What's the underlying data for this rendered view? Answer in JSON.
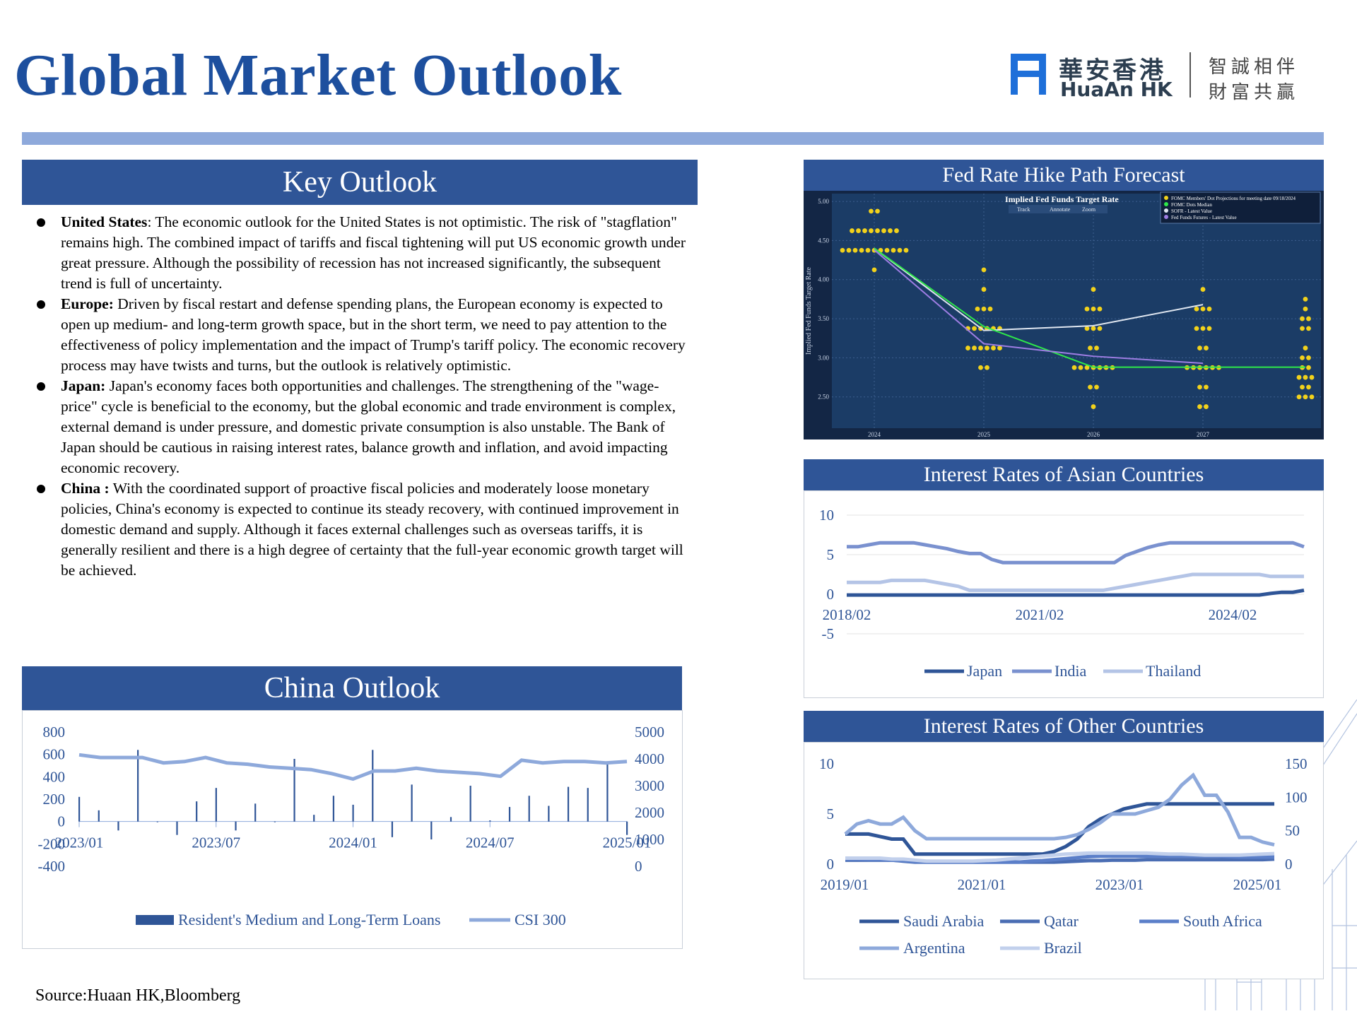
{
  "header": {
    "title": "Global Market Outlook",
    "logo_cn": "華安香港",
    "logo_en": "HuaAn HK",
    "slogan_line1": "智誠相伴",
    "slogan_line2": "財富共贏"
  },
  "colors": {
    "title": "#1d4f9e",
    "panel_header": "#2f5597",
    "rule": "#8ea9db"
  },
  "key_outlook": {
    "heading": "Key Outlook",
    "items": [
      {
        "label": "United States",
        "sep": ":",
        "text": " The economic outlook for the United States is not optimistic. The risk of \"stagflation\" remains high. The combined impact of tariffs and fiscal tightening will put US economic growth under great pressure. Although the possibility of recession has not increased significantly, the subsequent trend is full of uncertainty."
      },
      {
        "label": "Europe:",
        "sep": "",
        "text": " Driven by fiscal restart and defense spending plans, the European economy is expected to open up medium- and long-term growth space, but in the short term, we need to pay attention to the effectiveness of policy implementation and the impact of Trump's tariff policy. The economic recovery process may have twists and turns, but the outlook is relatively optimistic."
      },
      {
        "label": "Japan:",
        "sep": "",
        "text": " Japan's economy faces both opportunities and challenges. The strengthening of the \"wage-price\" cycle is beneficial to the economy, but the global economic and trade environment is complex, external demand is under pressure, and domestic private consumption is also unstable. The Bank of Japan should be cautious in raising interest rates, balance growth and inflation, and avoid impacting economic recovery."
      },
      {
        "label": "China :",
        "sep": "",
        "text": " With the coordinated support of proactive fiscal policies and moderately loose monetary policies, China's economy is expected to continue its steady recovery, with continued improvement in domestic demand and supply. Although it faces external challenges such as overseas tariffs, it is generally resilient and there is a high degree of certainty that the full-year economic growth target will be achieved."
      }
    ]
  },
  "china_outlook": {
    "heading": "China Outlook"
  },
  "fed": {
    "heading": "Fed Rate Hike Path Forecast"
  },
  "asia": {
    "heading": "Interest Rates of Asian Countries"
  },
  "other": {
    "heading": "Interest Rates of Other Countries"
  },
  "source": "Source:Huaan HK,Bloomberg",
  "chart_data": [
    {
      "id": "china",
      "type": "bar+line",
      "x_ticks": [
        "2023/01",
        "2023/07",
        "2024/01",
        "2024/07",
        "2025/01"
      ],
      "yleft_ticks": [
        "800",
        "600",
        "400",
        "200",
        "0",
        "-200",
        "-400"
      ],
      "yleft": [
        -400,
        800
      ],
      "yright_ticks": [
        "5000",
        "4000",
        "3000",
        "2000",
        "1000",
        "0"
      ],
      "yright": [
        0,
        5000
      ],
      "legend": [
        "Resident's Medium and Long-Term Loans",
        "CSI 300"
      ],
      "bars": [
        220,
        100,
        -80,
        640,
        0,
        -120,
        180,
        300,
        -80,
        160,
        0,
        560,
        60,
        230,
        150,
        640,
        -140,
        330,
        -160,
        40,
        320,
        10,
        130,
        230,
        140,
        310,
        300,
        510,
        -120
      ],
      "line": [
        4150,
        4050,
        4050,
        4050,
        3850,
        3900,
        4050,
        3850,
        3800,
        3700,
        3650,
        3600,
        3450,
        3250,
        3550,
        3550,
        3650,
        3550,
        3500,
        3450,
        3350,
        3950,
        3850,
        3900,
        3900,
        3850,
        3900
      ]
    },
    {
      "id": "fed",
      "type": "scatter+line",
      "title": "Implied Fed Funds Target Rate",
      "ylabel": "Implied Fed Funds Target Rate",
      "toolbar": [
        "Track",
        "Annotate",
        "Zoom"
      ],
      "legend": [
        "FOMC Members' Dot Projections for meeting date 09/18/2024",
        "FOMC Dots Median",
        "SOFR - Latest Value",
        "Fed Funds Futures - Latest Value"
      ],
      "x_ticks": [
        "2024",
        "2025",
        "2026",
        "2027"
      ],
      "y_ticks": [
        "5.00",
        "4.50",
        "4.00",
        "3.50",
        "3.00",
        "2.50"
      ],
      "ylim": [
        2.1,
        5.1
      ],
      "dots": [
        {
          "x": 0,
          "vals": [
            [
              4.875,
              2
            ],
            [
              4.625,
              8
            ],
            [
              4.375,
              11
            ],
            [
              4.125,
              1
            ]
          ]
        },
        {
          "x": 1,
          "vals": [
            [
              4.125,
              1
            ],
            [
              3.875,
              1
            ],
            [
              3.625,
              3
            ],
            [
              3.375,
              6
            ],
            [
              3.125,
              6
            ],
            [
              2.875,
              2
            ]
          ]
        },
        {
          "x": 2,
          "vals": [
            [
              3.875,
              1
            ],
            [
              3.625,
              3
            ],
            [
              3.375,
              3
            ],
            [
              3.125,
              2
            ],
            [
              2.875,
              7
            ],
            [
              2.625,
              2
            ],
            [
              2.375,
              1
            ]
          ]
        },
        {
          "x": 3,
          "vals": [
            [
              3.875,
              1
            ],
            [
              3.625,
              3
            ],
            [
              3.375,
              3
            ],
            [
              3.125,
              2
            ],
            [
              2.875,
              6
            ],
            [
              2.625,
              2
            ],
            [
              2.375,
              2
            ]
          ]
        },
        {
          "x": 4,
          "vals": [
            [
              3.75,
              1
            ],
            [
              3.625,
              1
            ],
            [
              3.5,
              2
            ],
            [
              3.375,
              2
            ],
            [
              3.125,
              1
            ],
            [
              3.0,
              2
            ],
            [
              2.875,
              2
            ],
            [
              2.75,
              3
            ],
            [
              2.625,
              2
            ],
            [
              2.5,
              3
            ]
          ]
        }
      ],
      "lines": [
        {
          "name": "white",
          "color": "#dfe6f0",
          "points": [
            [
              0,
              4.4
            ],
            [
              1,
              3.35
            ],
            [
              2,
              3.41
            ],
            [
              3,
              3.68
            ]
          ]
        },
        {
          "name": "green",
          "color": "#2ee84a",
          "points": [
            [
              0,
              4.4
            ],
            [
              1,
              3.4
            ],
            [
              2,
              2.88
            ],
            [
              3,
              2.88
            ],
            [
              4,
              2.88
            ]
          ]
        },
        {
          "name": "purple",
          "color": "#9e7de3",
          "points": [
            [
              0,
              4.38
            ],
            [
              1,
              3.18
            ],
            [
              2,
              3.02
            ],
            [
              3,
              2.93
            ]
          ]
        }
      ]
    },
    {
      "id": "asia",
      "type": "line",
      "x_ticks": [
        "2018/02",
        "2021/02",
        "2024/02"
      ],
      "y_ticks": [
        "10",
        "5",
        "0",
        "-5"
      ],
      "ylim": [
        -5,
        10
      ],
      "series": [
        {
          "name": "Japan",
          "color": "#2f5597",
          "values": [
            -0.1,
            -0.1,
            -0.1,
            -0.1,
            -0.1,
            -0.1,
            -0.1,
            -0.1,
            -0.1,
            -0.1,
            -0.1,
            -0.1,
            -0.1,
            -0.1,
            -0.1,
            -0.1,
            -0.1,
            -0.1,
            -0.1,
            -0.1,
            -0.1,
            -0.1,
            -0.1,
            -0.1,
            -0.1,
            -0.1,
            -0.1,
            -0.1,
            -0.1,
            -0.1,
            -0.1,
            -0.1,
            -0.1,
            -0.1,
            -0.1,
            -0.1,
            -0.1,
            -0.1,
            0.1,
            0.25,
            0.25,
            0.5
          ]
        },
        {
          "name": "India",
          "color": "#7a91cf",
          "values": [
            6.0,
            6.0,
            6.25,
            6.5,
            6.5,
            6.5,
            6.5,
            6.25,
            6.0,
            5.75,
            5.4,
            5.15,
            5.15,
            4.4,
            4.0,
            4.0,
            4.0,
            4.0,
            4.0,
            4.0,
            4.0,
            4.0,
            4.0,
            4.0,
            4.0,
            4.9,
            5.4,
            5.9,
            6.25,
            6.5,
            6.5,
            6.5,
            6.5,
            6.5,
            6.5,
            6.5,
            6.5,
            6.5,
            6.5,
            6.5,
            6.5,
            6.0
          ]
        },
        {
          "name": "Thailand",
          "color": "#b4c4e6",
          "values": [
            1.5,
            1.5,
            1.5,
            1.5,
            1.75,
            1.75,
            1.75,
            1.75,
            1.5,
            1.25,
            1.0,
            0.5,
            0.5,
            0.5,
            0.5,
            0.5,
            0.5,
            0.5,
            0.5,
            0.5,
            0.5,
            0.5,
            0.5,
            0.5,
            0.75,
            1.0,
            1.25,
            1.5,
            1.75,
            2.0,
            2.25,
            2.5,
            2.5,
            2.5,
            2.5,
            2.5,
            2.5,
            2.5,
            2.25,
            2.25,
            2.25,
            2.25
          ]
        }
      ]
    },
    {
      "id": "other",
      "type": "line",
      "x_ticks": [
        "2019/01",
        "2021/01",
        "2023/01",
        "2025/01"
      ],
      "yleft_ticks": [
        "10",
        "5",
        "0"
      ],
      "yleft": [
        0,
        10
      ],
      "yright_ticks": [
        "150",
        "100",
        "50",
        "0"
      ],
      "yright": [
        0,
        150
      ],
      "series": [
        {
          "name": "Saudi Arabia",
          "axis": "left",
          "color": "#2f5597",
          "values": [
            3.0,
            3.0,
            3.0,
            2.75,
            2.5,
            2.5,
            1.0,
            1.0,
            1.0,
            1.0,
            1.0,
            1.0,
            1.0,
            1.0,
            1.0,
            1.0,
            1.0,
            1.0,
            1.25,
            1.75,
            2.5,
            3.75,
            4.5,
            5.0,
            5.5,
            5.75,
            6.0,
            6.0,
            6.0,
            6.0,
            6.0,
            6.0,
            6.0,
            6.0,
            6.0,
            6.0,
            6.0,
            6.0
          ]
        },
        {
          "name": "Qatar",
          "axis": "left",
          "color": "#4a6db3",
          "values": [
            0.4,
            0.4,
            0.4,
            0.4,
            0.4,
            0.3,
            0.2,
            0.2,
            0.2,
            0.2,
            0.2,
            0.2,
            0.2,
            0.2,
            0.2,
            0.2,
            0.2,
            0.2,
            0.2,
            0.25,
            0.3,
            0.35,
            0.35,
            0.4,
            0.4,
            0.4,
            0.45,
            0.45,
            0.45,
            0.45,
            0.45,
            0.45,
            0.45,
            0.45,
            0.45,
            0.45,
            0.45,
            0.5
          ]
        },
        {
          "name": "South Africa",
          "axis": "left",
          "color": "#5b7fc9",
          "values": [
            0.5,
            0.5,
            0.45,
            0.45,
            0.4,
            0.35,
            0.25,
            0.2,
            0.2,
            0.2,
            0.2,
            0.2,
            0.2,
            0.2,
            0.2,
            0.2,
            0.3,
            0.35,
            0.45,
            0.55,
            0.65,
            0.75,
            0.8,
            0.8,
            0.8,
            0.8,
            0.8,
            0.8,
            0.8,
            0.8,
            0.8,
            0.8,
            0.8,
            0.75,
            0.7,
            0.7,
            0.7,
            0.7
          ]
        },
        {
          "name": "Argentina",
          "axis": "right",
          "color": "#8ea9db",
          "values": [
            45,
            60,
            65,
            60,
            60,
            70,
            50,
            38,
            38,
            38,
            38,
            38,
            38,
            38,
            38,
            38,
            38,
            38,
            38,
            40,
            44,
            52,
            62,
            75,
            75,
            75,
            80,
            85,
            97,
            118,
            133,
            103,
            103,
            78,
            40,
            40,
            33,
            29
          ]
        },
        {
          "name": "Brazil",
          "axis": "left",
          "color": "#c2d0ec",
          "values": [
            0.6,
            0.6,
            0.6,
            0.6,
            0.5,
            0.5,
            0.4,
            0.3,
            0.3,
            0.3,
            0.3,
            0.3,
            0.35,
            0.4,
            0.5,
            0.6,
            0.7,
            0.8,
            0.9,
            1.0,
            1.05,
            1.1,
            1.1,
            1.1,
            1.1,
            1.1,
            1.1,
            1.05,
            1.0,
            1.0,
            0.95,
            0.9,
            0.9,
            0.9,
            0.9,
            0.95,
            1.0,
            1.05
          ]
        }
      ]
    }
  ]
}
